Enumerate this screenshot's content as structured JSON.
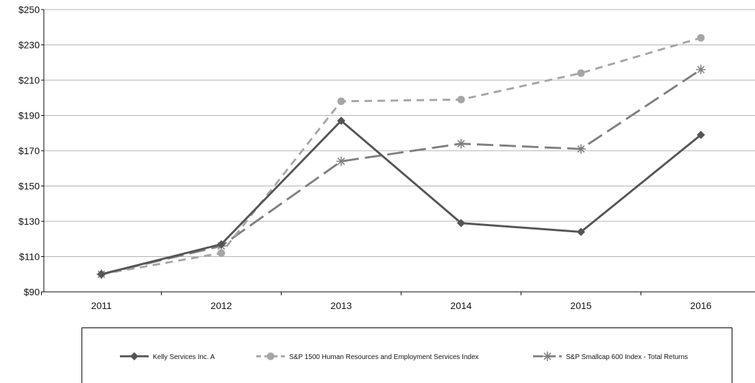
{
  "chart_data": {
    "type": "line",
    "categories": [
      "2011",
      "2012",
      "2013",
      "2014",
      "2015",
      "2016"
    ],
    "series": [
      {
        "name": "Kelly Services Inc. A",
        "values": [
          100,
          117,
          187,
          129,
          124,
          179
        ],
        "color": "#555555",
        "marker": "diamond",
        "dash": "solid"
      },
      {
        "name": "S&P 1500 Human Resources and Employment Services Index",
        "values": [
          100,
          112,
          198,
          199,
          214,
          234
        ],
        "color": "#a6a6a6",
        "marker": "circle",
        "dash": "short-dash"
      },
      {
        "name": "S&P Smallcap 600 Index - Total Returns",
        "values": [
          100,
          116,
          164,
          174,
          171,
          216
        ],
        "color": "#7f7f7f",
        "marker": "star",
        "dash": "long-dash"
      }
    ],
    "yticks": [
      "$90",
      "$110",
      "$130",
      "$150",
      "$170",
      "$190",
      "$210",
      "$230",
      "$250"
    ],
    "ylim": [
      90,
      250
    ],
    "grid": true,
    "legend_position": "bottom"
  }
}
